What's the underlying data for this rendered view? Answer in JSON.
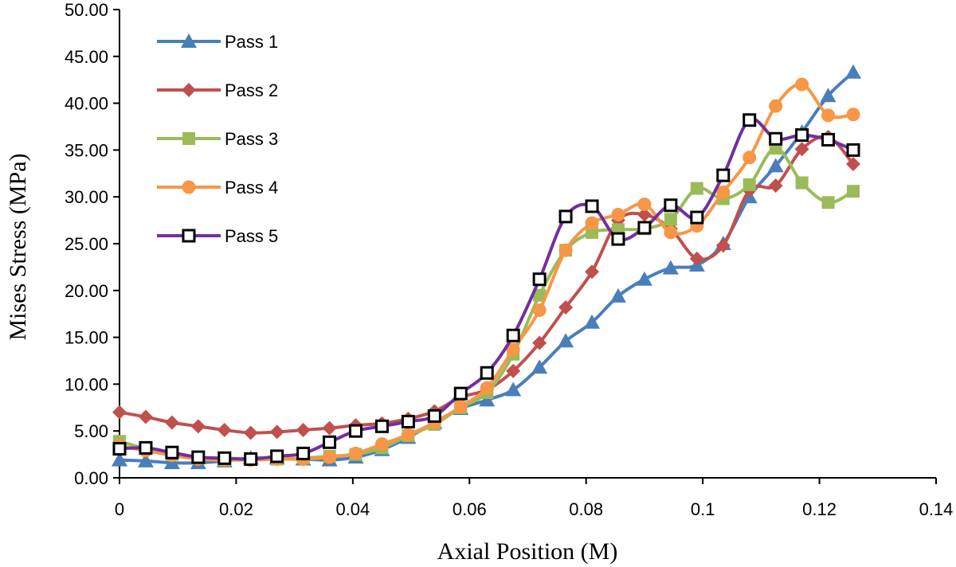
{
  "chart_data": {
    "type": "line",
    "title": "",
    "xlabel": "Axial Position (M)",
    "ylabel": "Mises Stress (MPa)",
    "xlim": [
      0,
      0.14
    ],
    "ylim": [
      0,
      50
    ],
    "xticks": [
      0,
      0.02,
      0.04,
      0.06,
      0.08,
      0.1,
      0.12,
      0.14
    ],
    "xtick_labels": [
      "0",
      "0.02",
      "0.04",
      "0.06",
      "0.08",
      "0.1",
      "0.12",
      "0.14"
    ],
    "yticks": [
      0,
      5,
      10,
      15,
      20,
      25,
      30,
      35,
      40,
      45,
      50
    ],
    "ytick_labels": [
      "0.00",
      "5.00",
      "10.00",
      "15.00",
      "20.00",
      "25.00",
      "30.00",
      "35.00",
      "40.00",
      "45.00",
      "50.00"
    ],
    "grid": false,
    "legend_position": "top-left",
    "series": [
      {
        "name": "Pass 1",
        "color": "#4A7EBB",
        "marker": "triangle",
        "x": [
          0,
          0.0045,
          0.009,
          0.0135,
          0.018,
          0.0225,
          0.027,
          0.0315,
          0.036,
          0.0405,
          0.045,
          0.0495,
          0.054,
          0.0585,
          0.063,
          0.0675,
          0.072,
          0.0765,
          0.081,
          0.0855,
          0.09,
          0.0945,
          0.099,
          0.1035,
          0.108,
          0.1125,
          0.117,
          0.1215,
          0.1258
        ],
        "y": [
          1.9,
          1.8,
          1.6,
          1.6,
          1.8,
          2.1,
          2.1,
          2.0,
          1.9,
          2.2,
          3.0,
          4.3,
          5.9,
          7.4,
          8.3,
          9.4,
          11.8,
          14.6,
          16.6,
          19.4,
          21.2,
          22.4,
          22.7,
          25.0,
          30.0,
          33.3,
          36.9,
          40.8,
          43.3
        ]
      },
      {
        "name": "Pass 2",
        "color": "#C0504D",
        "marker": "diamond",
        "x": [
          0,
          0.0045,
          0.009,
          0.0135,
          0.018,
          0.0225,
          0.027,
          0.0315,
          0.036,
          0.0405,
          0.045,
          0.0495,
          0.054,
          0.0585,
          0.063,
          0.0675,
          0.072,
          0.0765,
          0.081,
          0.0855,
          0.09,
          0.0945,
          0.099,
          0.1035,
          0.108,
          0.1125,
          0.117,
          0.1215,
          0.1258
        ],
        "y": [
          7.0,
          6.5,
          5.9,
          5.5,
          5.1,
          4.8,
          4.9,
          5.1,
          5.3,
          5.6,
          5.8,
          6.3,
          7.1,
          8.6,
          9.4,
          11.4,
          14.4,
          18.2,
          22.0,
          27.5,
          28.1,
          26.6,
          23.4,
          24.8,
          30.7,
          31.2,
          35.1,
          36.4,
          33.5
        ]
      },
      {
        "name": "Pass 3",
        "color": "#9BBB59",
        "marker": "square",
        "x": [
          0,
          0.0045,
          0.009,
          0.0135,
          0.018,
          0.0225,
          0.027,
          0.0315,
          0.036,
          0.0405,
          0.045,
          0.0495,
          0.054,
          0.0585,
          0.063,
          0.0675,
          0.072,
          0.0765,
          0.081,
          0.0855,
          0.09,
          0.0945,
          0.099,
          0.1035,
          0.108,
          0.1125,
          0.117,
          0.1215,
          0.1258
        ],
        "y": [
          3.9,
          3.1,
          2.5,
          2.1,
          1.9,
          2.0,
          2.0,
          2.1,
          2.3,
          2.5,
          3.2,
          4.5,
          5.7,
          7.5,
          9.1,
          13.2,
          19.5,
          24.3,
          26.2,
          26.5,
          26.6,
          27.6,
          30.9,
          29.8,
          31.3,
          35.2,
          31.5,
          29.4,
          30.6
        ]
      },
      {
        "name": "Pass 4",
        "color": "#F79646",
        "marker": "circle",
        "x": [
          0,
          0.0045,
          0.009,
          0.0135,
          0.018,
          0.0225,
          0.027,
          0.0315,
          0.036,
          0.0405,
          0.045,
          0.0495,
          0.054,
          0.0585,
          0.063,
          0.0675,
          0.072,
          0.0765,
          0.081,
          0.0855,
          0.09,
          0.0945,
          0.099,
          0.1035,
          0.108,
          0.1125,
          0.117,
          0.1215,
          0.1258
        ],
        "y": [
          3.4,
          2.9,
          2.4,
          2.0,
          1.9,
          1.9,
          2.0,
          2.0,
          2.2,
          2.6,
          3.6,
          4.6,
          5.9,
          7.6,
          9.6,
          13.7,
          17.9,
          24.3,
          27.2,
          28.1,
          29.2,
          26.2,
          26.9,
          30.5,
          34.2,
          39.7,
          42.0,
          38.7,
          38.8
        ]
      },
      {
        "name": "Pass 5",
        "color": "#7030A0",
        "marker": "open-square",
        "x": [
          0,
          0.0045,
          0.009,
          0.0135,
          0.018,
          0.0225,
          0.027,
          0.0315,
          0.036,
          0.0405,
          0.045,
          0.0495,
          0.054,
          0.0585,
          0.063,
          0.0675,
          0.072,
          0.0765,
          0.081,
          0.0855,
          0.09,
          0.0945,
          0.099,
          0.1035,
          0.108,
          0.1125,
          0.117,
          0.1215,
          0.1258
        ],
        "y": [
          3.1,
          3.2,
          2.7,
          2.2,
          2.1,
          2.0,
          2.3,
          2.6,
          3.8,
          5.0,
          5.5,
          6.0,
          6.6,
          9.0,
          11.2,
          15.2,
          21.2,
          27.9,
          29.0,
          25.5,
          26.7,
          29.1,
          27.8,
          32.3,
          38.2,
          36.2,
          36.6,
          36.1,
          35.0
        ]
      }
    ]
  }
}
